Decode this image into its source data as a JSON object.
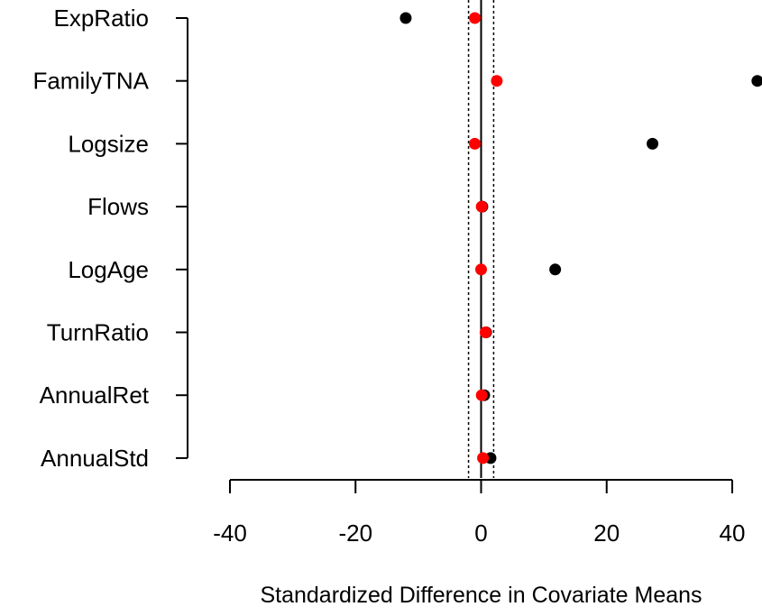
{
  "chart_data": {
    "type": "scatter",
    "title": "",
    "xlabel": "Standardized Difference in Covariate Means",
    "ylabel": "",
    "xlim": [
      -40,
      40
    ],
    "xticks": [
      -40,
      -20,
      0,
      20,
      40
    ],
    "categories": [
      "ExpRatio",
      "FamilyTNA",
      "Logsize",
      "Flows",
      "LogAge",
      "TurnRatio",
      "AnnualRet",
      "AnnualStd"
    ],
    "series": [
      {
        "color": "#000000",
        "values": [
          -12,
          44,
          27.3,
          0.2,
          11.8,
          0.8,
          0.5,
          1.5
        ]
      },
      {
        "color": "#ff0000",
        "values": [
          -1,
          2.5,
          -1,
          0.1,
          0,
          0.7,
          0.1,
          0.3
        ]
      }
    ],
    "reference_lines": {
      "solid": [
        0
      ],
      "dotted": [
        -2,
        2
      ]
    },
    "grid": false,
    "legend": "none"
  }
}
